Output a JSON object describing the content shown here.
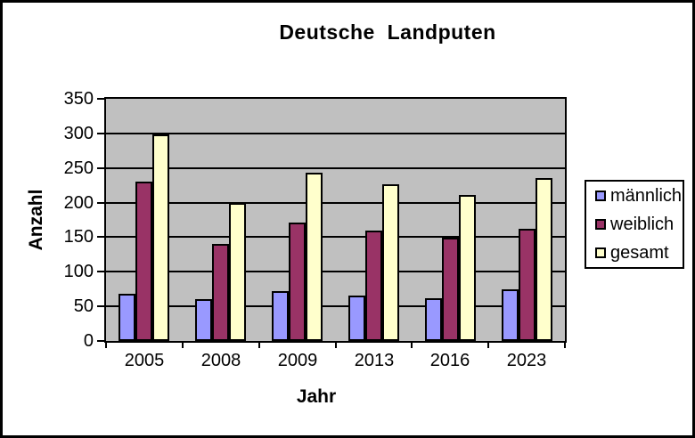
{
  "chart_data": {
    "type": "bar",
    "title": "Deutsche  Landputen",
    "xlabel": "Jahr",
    "ylabel": "Anzahl",
    "categories": [
      "2005",
      "2008",
      "2009",
      "2013",
      "2016",
      "2023"
    ],
    "series": [
      {
        "name": "männlich",
        "color": "#9999FF",
        "values": [
          68,
          60,
          72,
          66,
          62,
          74
        ]
      },
      {
        "name": "weiblich",
        "color": "#993366",
        "values": [
          230,
          140,
          171,
          160,
          149,
          162
        ]
      },
      {
        "name": "gesamt",
        "color": "#FFFFCC",
        "values": [
          298,
          200,
          243,
          226,
          211,
          236
        ]
      }
    ],
    "ylim": [
      0,
      350
    ],
    "ytick_step": 50,
    "grid": true,
    "legend_position": "right",
    "plot_bg_color": "#C0C0C0",
    "line_color": "#000000",
    "background_color": "#FFFFFF"
  }
}
